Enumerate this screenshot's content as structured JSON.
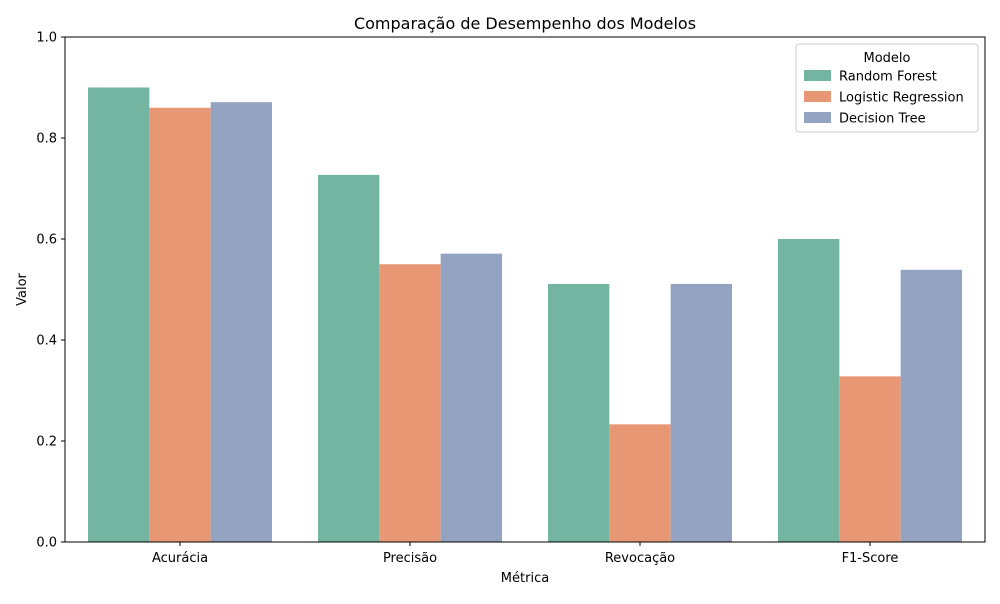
{
  "chart_data": {
    "type": "bar",
    "title": "Comparação de Desempenho dos Modelos",
    "xlabel": "Métrica",
    "ylabel": "Valor",
    "ylim": [
      0,
      1.0
    ],
    "yticks": [
      "0.0",
      "0.2",
      "0.4",
      "0.6",
      "0.8",
      "1.0"
    ],
    "categories": [
      "Acurácia",
      "Precisão",
      "Revocação",
      "F1-Score"
    ],
    "series": [
      {
        "name": "Random Forest",
        "values": [
          0.9,
          0.727,
          0.511,
          0.6
        ],
        "color": "#73b5a0"
      },
      {
        "name": "Logistic Regression",
        "values": [
          0.86,
          0.55,
          0.233,
          0.328
        ],
        "color": "#e79774"
      },
      {
        "name": "Decision Tree",
        "values": [
          0.871,
          0.571,
          0.511,
          0.539
        ],
        "color": "#94a3c2"
      }
    ],
    "legend": {
      "title": "Modelo",
      "placement": "top-right"
    },
    "grid": false
  }
}
